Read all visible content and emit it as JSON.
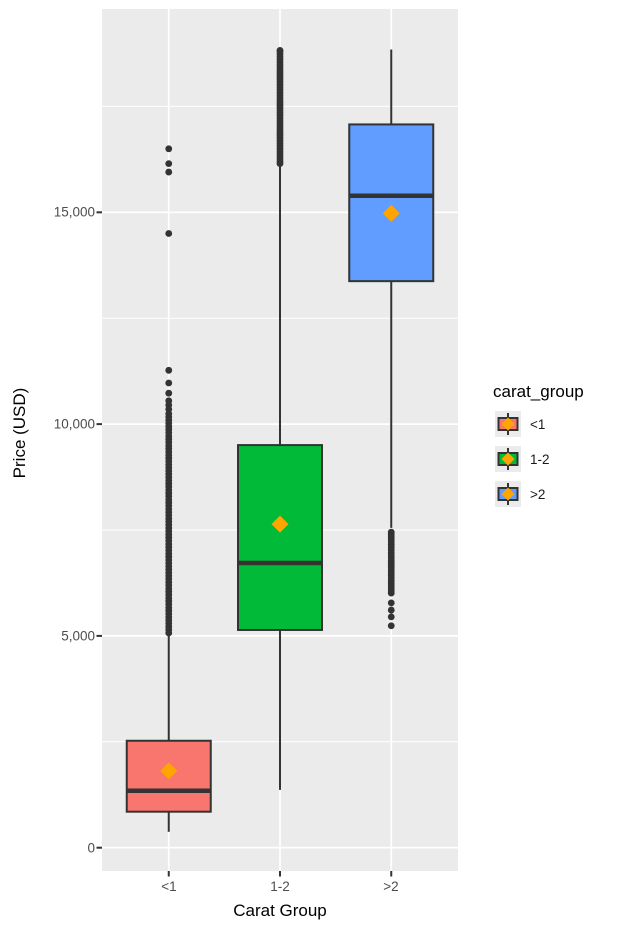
{
  "chart_data": {
    "type": "boxplot",
    "xlabel": "Carat Group",
    "ylabel": "Price (USD)",
    "legend_title": "carat_group",
    "categories": [
      "<1",
      "1-2",
      ">2"
    ],
    "yticks": [
      {
        "value": 0,
        "label": "0"
      },
      {
        "value": 5000,
        "label": "5,000"
      },
      {
        "value": 10000,
        "label": "10,000"
      },
      {
        "value": 15000,
        "label": "15,000"
      }
    ],
    "yminor": [
      2500,
      7500,
      12500,
      17500
    ],
    "ylim": [
      -550,
      19800
    ],
    "panel_bg": "#EBEBEB",
    "grid_color": "#FFFFFF",
    "box_border": "#333333",
    "outlier_color": "#333333",
    "legend_key_bg": "#EBEBEB",
    "mean_marker": {
      "shape": "diamond",
      "color": "#FFA500"
    },
    "groups": [
      {
        "label": "<1",
        "fill": "#F8766D",
        "whisker_low": 375,
        "q1": 850,
        "median": 1345,
        "q3": 2525,
        "whisker_high": 5070,
        "mean": 1815,
        "outlier_points": [
          16500,
          16150,
          15950,
          14500,
          11270,
          10970,
          10730,
          10550,
          10450,
          10350
        ],
        "outlier_ranges": [
          {
            "from": 5070,
            "to": 10260,
            "step": 75
          }
        ]
      },
      {
        "label": "1-2",
        "fill": "#00BA38",
        "whisker_low": 1365,
        "q1": 5140,
        "median": 6720,
        "q3": 9505,
        "whisker_high": 16150,
        "mean": 7640,
        "outlier_points": [
          18823
        ],
        "outlier_ranges": [
          {
            "from": 16150,
            "to": 18820,
            "step": 60
          }
        ]
      },
      {
        "label": ">2",
        "fill": "#619CFF",
        "whisker_low": 7550,
        "q1": 13375,
        "median": 15390,
        "q3": 17075,
        "whisker_high": 18845,
        "mean": 14975,
        "outlier_points": [
          5780,
          5610,
          5450,
          5240
        ],
        "outlier_ranges": [
          {
            "from": 6010,
            "to": 7500,
            "step": 60
          }
        ]
      }
    ]
  }
}
